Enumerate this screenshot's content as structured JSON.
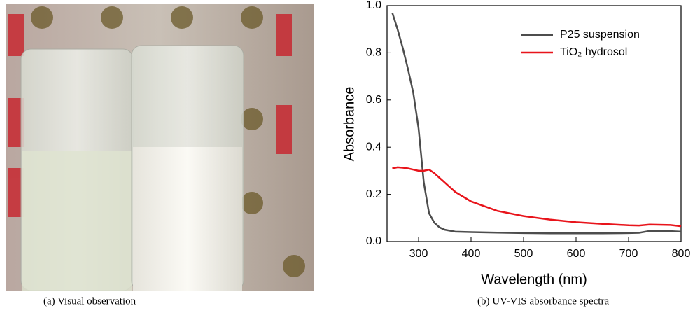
{
  "photo_caption": "(a) Visual observation",
  "chart_data": {
    "type": "line",
    "caption": "(b) UV-VIS absorbance spectra",
    "x_label": "Wavelength (nm)",
    "y_label": "Absorbance",
    "x": [
      250,
      260,
      270,
      280,
      290,
      300,
      310,
      320,
      330,
      340,
      350,
      370,
      400,
      450,
      500,
      550,
      600,
      650,
      700,
      720,
      740,
      780,
      800
    ],
    "series": [
      {
        "name": "P25 suspension",
        "color": "#4d4d4d",
        "values": [
          0.97,
          0.9,
          0.82,
          0.73,
          0.63,
          0.48,
          0.25,
          0.12,
          0.08,
          0.06,
          0.05,
          0.042,
          0.04,
          0.038,
          0.036,
          0.035,
          0.035,
          0.035,
          0.036,
          0.037,
          0.045,
          0.044,
          0.042
        ]
      },
      {
        "name": "TiO₂ hydrosol",
        "color": "#e8141b",
        "values": [
          0.31,
          0.315,
          0.313,
          0.31,
          0.305,
          0.3,
          0.3,
          0.305,
          0.29,
          0.27,
          0.25,
          0.21,
          0.17,
          0.13,
          0.108,
          0.093,
          0.082,
          0.075,
          0.069,
          0.068,
          0.072,
          0.07,
          0.065
        ]
      }
    ],
    "xlim": [
      240,
      800
    ],
    "ylim": [
      0,
      1
    ],
    "xticks": [
      300,
      400,
      500,
      600,
      700,
      800
    ],
    "yticks": [
      {
        "value": 0,
        "label": "0.0"
      },
      0.2,
      0.4,
      0.6,
      0.8,
      {
        "value": 1,
        "label": "1.0"
      }
    ],
    "legend": "top-right"
  }
}
